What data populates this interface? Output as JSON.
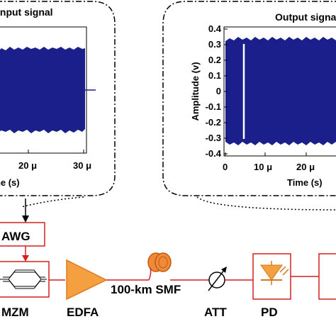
{
  "input_plot": {
    "title": "Input signal",
    "xlabel": "Time (s)",
    "xticks": [
      "20 μ",
      "30 μ"
    ]
  },
  "output_plot": {
    "title": "Output signal",
    "ylabel": "Amplitude (v)",
    "xlabel": "Time (s)",
    "yticks": [
      "0.4",
      "0.3",
      "0.2",
      "0.1",
      "0",
      "-0.1",
      "-0.2",
      "-0.3",
      "-0.4"
    ],
    "xticks": [
      "0",
      "10 μ",
      "20 μ"
    ]
  },
  "components": {
    "awg": "AWG",
    "mzm": "MZM",
    "edfa": "EDFA",
    "smf": "100-km SMF",
    "att": "ATT",
    "pd": "PD"
  },
  "colors": {
    "signal": "#1a1f8c",
    "component": "#d42020",
    "edfa_fill": "#f5a040",
    "fiber": "#ef8a3a"
  }
}
